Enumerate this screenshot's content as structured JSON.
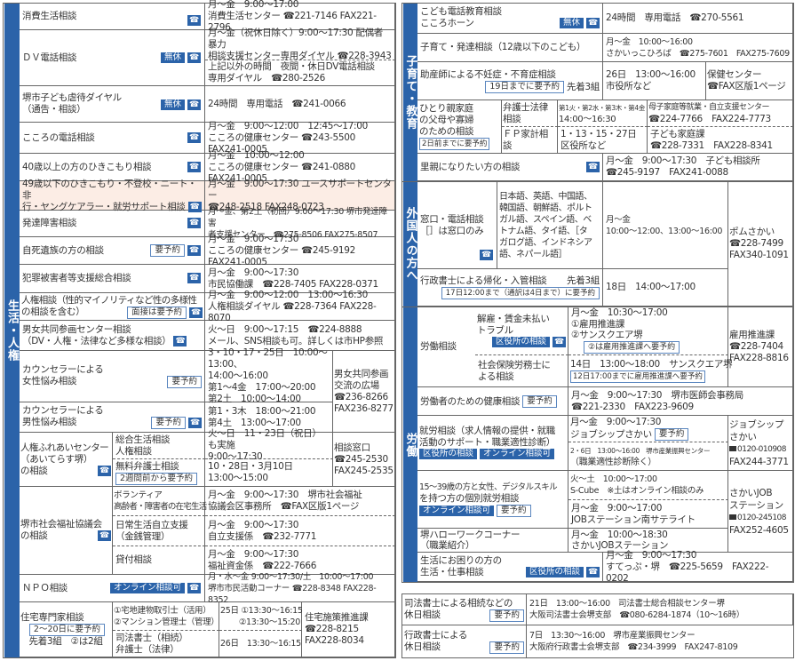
{
  "colors": {
    "category": "#2b63a9",
    "highlight": "#fcede5"
  },
  "icons": {
    "phone": "phone-icon"
  },
  "badges": {
    "muyasumi": "無休",
    "yoyaku": "要予約",
    "online": "オンライン相談可",
    "kuyakusho": "区役所の相談",
    "mensetsu": "面接は要予約"
  },
  "tel": "☎",
  "left": {
    "category": "生活・人権",
    "rows": [
      {
        "title": [
          "消費生活相談"
        ],
        "info": [
          "月～金　9:00～17:00",
          "消費生活センター ☎221-7146 FAX221-2796"
        ]
      },
      {
        "title": [
          "ＤＶ電話相談"
        ],
        "info": [
          "月～金（祝休日除く）9:00～17:30 配偶者暴力",
          "相談支援センター専用ダイヤル ☎228-3943"
        ],
        "info2": [
          "上記以外の時間　夜間・休日DV電話相談",
          "専用ダイヤル　☎280-2526"
        ]
      },
      {
        "title": [
          "堺市子ども虐待ダイヤル",
          "（通告・相談）"
        ],
        "info": [
          "24時間　専用電話　☎241-0066"
        ]
      },
      {
        "title": [
          "こころの電話相談"
        ],
        "info": [
          "月～金　9:00～12:00　12:45～17:00",
          "こころの健康センター ☎243-5500 FAX241-0005"
        ]
      },
      {
        "title": [
          "40歳以上の方のひきこもり相談"
        ],
        "info": [
          "月～金　10:00～12:00",
          "こころの健康センター ☎241-0880 FAX241-0005"
        ]
      },
      {
        "title": [
          "49歳以下のひきこもり・不登校・ニート・非",
          "行・ヤングケアラー・就労サポート相談"
        ],
        "info": [
          "月～金　9:00～17:30 ユースサポートセンター",
          "☎248-2518 FAX248-0723"
        ]
      },
      {
        "title": [
          "発達障害相談"
        ],
        "info": [
          "月～金、第2土（初回）9:00～17:30 堺市発達障害",
          "者支援センター　☎275-8506 FAX275-8507"
        ]
      },
      {
        "title": [
          "自死遺族の方の相談"
        ],
        "info": [
          "月～金　9:00～17:30",
          "こころの健康センター ☎245-9192 FAX241-0005"
        ]
      },
      {
        "title": [
          "犯罪被害者等支援総合相談"
        ],
        "info": [
          "月～金　9:00～17:30",
          "市民協働課　☎228-7405 FAX228-0371"
        ]
      },
      {
        "title": [
          "人権相談（性的マイノリティなど性の多様性",
          "の相談を含む）"
        ],
        "info": [
          "月～金　9:00～12:00　13:00～16:30",
          "人権相談ダイヤル ☎228-7364 FAX228-8070"
        ]
      },
      {
        "title": [
          "男女共同参画センター相談",
          "（DV・人権・法律など多様な相談）"
        ],
        "info": [
          "火～日　9:00～17:15　☎224-8888",
          "メール、SNS相談も可。詳しくは市HP参照"
        ]
      },
      {
        "title": [
          "カウンセラーによる",
          "女性悩み相談"
        ],
        "info": [
          "3・10・17・25日　10:00～13:00、",
          "14:00～16:00",
          "第1～4金　17:00～20:00",
          "第2土　10:00～14:00"
        ],
        "side": [
          "男女共同参画",
          "交流の広場",
          "☎236-8266",
          "FAX236-8277"
        ]
      },
      {
        "title": [
          "カウンセラーによる",
          "男性悩み相談"
        ],
        "info": [
          "第1・3木　18:00～21:00",
          "第4土　13:00～17:00"
        ]
      },
      {
        "title": [
          "人権ふれあいセンター",
          "（あいてらす堺）",
          "の相談"
        ],
        "sub": [
          "総合生活相談",
          "人権相談"
        ],
        "info": [
          "火～日　11・23日（祝日）も実施",
          "9:00～17:30"
        ],
        "sub2": [
          "無料弁護士相談"
        ],
        "badge2": "2週間前から要予約",
        "info2": [
          "10・28日・3月10日",
          "13:00～15:00"
        ],
        "side": [
          "相談窓口",
          "☎245-2530",
          "FAX245-2535"
        ]
      },
      {
        "title": [
          "堺市社会福祉協議会",
          "の相談"
        ],
        "subs": [
          {
            "sub": [
              "ボランティア",
              "高齢者・障害者の在宅生活"
            ],
            "info": [
              "月～金　9:00～17:30　堺市社会福祉",
              "協議会区事務所　☎FAX区版1ページ"
            ]
          },
          {
            "sub": [
              "日常生活自立支援",
              "（金銭管理）"
            ],
            "info": [
              "月～金　9:00～17:30",
              "自立支援係　☎232-7771"
            ]
          },
          {
            "sub": [
              "貸付相談"
            ],
            "info": [
              "月～金　9:00～17:30",
              "福祉資金係　☎222-7666"
            ]
          }
        ]
      },
      {
        "title": [
          "ＮＰＯ相談"
        ],
        "info": [
          "月・水～金 9:00～17:30/土　10:00～17:00",
          "堺市市民活動コーナー ☎228-8348 FAX228-8352"
        ]
      },
      {
        "title": [
          "住宅専門家相談"
        ],
        "badge": "2～20日に要予約",
        "note": "先着3組　②は2組",
        "sub": [
          "①宅地建物取引士（活用）",
          "②マンション管理士（管理）"
        ],
        "date": [
          "25日 ①13:30～16:15",
          "②13:30～15:20"
        ],
        "sub2": [
          "司法書士（相続）",
          "弁護士（法律）"
        ],
        "date2": [
          "26日　13:30～16:15"
        ],
        "side": [
          "住宅施策推進課",
          "☎228-8215",
          "FAX228-8034"
        ]
      }
    ]
  },
  "right": {
    "categories": [
      "子育て・教育",
      "外国人の方へ",
      "労働"
    ],
    "rows": [
      {
        "title": [
          "こども電話教育相談",
          "こころホーン"
        ],
        "info": [
          "24時間　専用電話　☎270-5561"
        ]
      },
      {
        "title": [
          "子育て・発達相談（12歳以下のこども）"
        ],
        "info": [
          "月～金　10:00～16:00",
          "さかいっこひろば　☎275-7601　FAX275-7609"
        ]
      },
      {
        "title": [
          "助産師による不妊症・不育症相談"
        ],
        "badge": "19日までに要予約",
        "note": "先着3組",
        "info": [
          "26日　13:00～16:00",
          "市役所など"
        ],
        "side": [
          "保健センター",
          "☎FAX区版1ページ"
        ]
      },
      {
        "title": [
          "ひとり親家庭",
          "の父母や寡婦",
          "のための相談"
        ],
        "badge": "2日前までに要予約",
        "sub": [
          "弁護士法律",
          "相談"
        ],
        "info": [
          "第1火・第2水・第3木・第4金",
          "14:00～16:30"
        ],
        "side": [
          "母子家庭等就業・自立支援センター",
          "☎224-7766　FAX224-7773"
        ],
        "sub2": [
          "ＦＰ家計相",
          "談"
        ],
        "info2": [
          "1・13・15・27日",
          "区役所など"
        ],
        "side2": [
          "子ども家庭課",
          "☎228-7331　FAX228-8341"
        ]
      },
      {
        "title": [
          "里親になりたい方の相談"
        ],
        "info": [
          "月～金　9:00～17:30　子ども相談所",
          "☎245-9197　FAX241-0088"
        ]
      },
      {
        "title": [
          "窓口・電話相談",
          "［］は窓口のみ"
        ],
        "langs": [
          "日本語、英語、中国語、",
          "韓国語、朝鮮語、ポルト",
          "ガル語、スペイン語、ベ",
          "トナム語、タイ語、［タ",
          "ガログ語、インドネシア",
          "語、ネパール語］"
        ],
        "info": [
          "月～金",
          "10:00～12:00、13:00～16:00"
        ],
        "side": [
          "ポムさかい",
          "☎228-7499",
          "FAX340-1091"
        ]
      },
      {
        "title": [
          "行政書士による帰化・入管相談"
        ],
        "note": "先着3組",
        "badge": "17日12:00まで（通訳は4日まで）に要予約",
        "info": [
          "18日　14:00～17:00"
        ]
      },
      {
        "title": [
          "労働相談"
        ],
        "sub": [
          "解雇・賃金未払い",
          "トラブル"
        ],
        "info": [
          "月～金　10:30～17:00",
          "①雇用推進課",
          "②サンスクエア堺"
        ],
        "badge": "②は雇用推進課へ要予約",
        "sub2": [
          "社会保険労務士に",
          "よる相談"
        ],
        "info2": [
          "14日　13:00～18:00　サンスクエア堺"
        ],
        "badge2": "12日17:00までに雇用推進課へ要予約",
        "side": [
          "雇用推進課",
          "☎228-7404",
          "FAX228-8816"
        ]
      },
      {
        "title": [
          "労働者のための健康相談"
        ],
        "info": [
          "月～金　9:00～17:30　堺市医師会事務局",
          "☎221-2330　FAX223-9609"
        ]
      },
      {
        "title": [
          "就労相談（求人情報の提供・就職",
          "活動のサポート・職業適性診断）"
        ],
        "info": [
          "月～金　9:00～17:30",
          "ジョブシップさかい"
        ],
        "info2": [
          "2・6日　13:00～16:00　堺市産業振興センター",
          "（職業適性診断除く）"
        ],
        "side": [
          "ジョブシップ",
          "さかい",
          "0120-010908",
          "FAX244-3771"
        ]
      },
      {
        "title": [
          "15～39歳の方と女性、デジタルスキル",
          "を持つ方の個別就労相談"
        ],
        "info": [
          "火～土　10:00～17:00",
          "S-Cube　※土はオンライン相談のみ"
        ],
        "info2": [
          "月～金　9:00～17:00",
          "JOBステーション南サテライト"
        ],
        "side": [
          "さかいJOB",
          "ステーション",
          "0120-245108",
          "FAX252-4605"
        ]
      },
      {
        "title": [
          "堺ハローワークコーナー",
          "（職業紹介）"
        ],
        "info": [
          "月～金　10:00～18:30",
          "さかいJOBステーション"
        ]
      },
      {
        "title": [
          "生活にお困りの方の",
          "生活・仕事相談"
        ],
        "info": [
          "月～金　9:00～17:30",
          "すてっぷ・堺　☎225-5659　FAX222-0202"
        ]
      }
    ]
  },
  "bottom": {
    "rows": [
      {
        "title": [
          "司法書士による相続などの",
          "休日相談"
        ],
        "info": [
          "21日　13:00～16:00　司法書士総合相談センター堺",
          "大阪司法書士会堺支部　☎080-6284-1874（10～16時）"
        ]
      },
      {
        "title": [
          "行政書士による",
          "休日相談"
        ],
        "info": [
          "7日　13:30～16:00　堺市産業振興センター",
          "大阪府行政書士会堺支部　☎234-3999　FAX247-8109"
        ]
      }
    ]
  }
}
